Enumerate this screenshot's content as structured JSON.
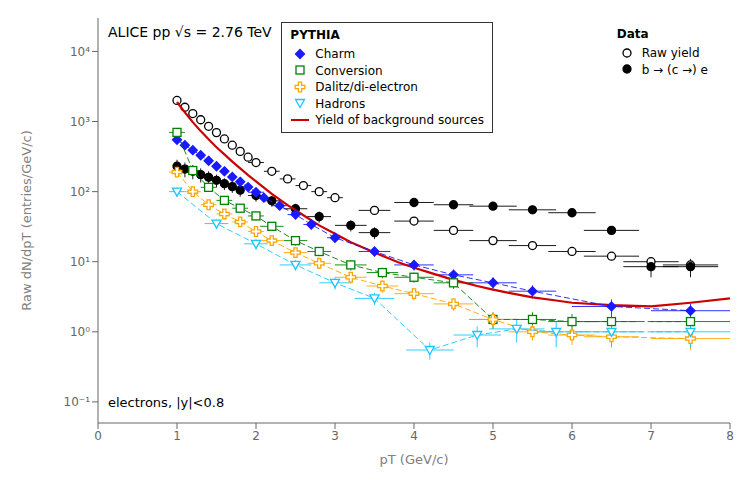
{
  "chart_data": {
    "type": "scatter",
    "xlabel": "pT (GeV/c)",
    "ylabel": "Raw dN/dpT (entries/GeV/c)",
    "annotations": [
      "ALICE pp √s = 2.76 TeV",
      "electrons, |y|<0.8"
    ],
    "log": "y",
    "grid": false,
    "legend": "upper right",
    "xlim": [
      0,
      8
    ],
    "xticks": [
      0,
      1,
      2,
      3,
      4,
      5,
      6,
      7,
      8
    ],
    "ylim": [
      0.05,
      30000
    ],
    "yticks": [
      {
        "value": 0.1,
        "label": "10⁻¹"
      },
      {
        "value": 1,
        "label": "10⁰"
      },
      {
        "value": 10,
        "label": "10¹"
      },
      {
        "value": 100,
        "label": "10²"
      },
      {
        "value": 1000,
        "label": "10³"
      },
      {
        "value": 10000,
        "label": "10⁴"
      }
    ],
    "legend_groups": [
      {
        "title": "PYTHIA",
        "entries": [
          "Charm",
          "Conversion",
          "Dalitz/di-electron",
          "Hadrons",
          "Yield of background sources"
        ]
      },
      {
        "title": "Data",
        "entries": [
          "Raw yield",
          "b → (c →) e"
        ]
      }
    ],
    "series": [
      {
        "name": "Raw yield",
        "type": "scatter",
        "color": "#000000",
        "marker": "open-circle",
        "x": [
          1.0,
          1.1,
          1.2,
          1.3,
          1.4,
          1.5,
          1.6,
          1.7,
          1.8,
          1.9,
          2.0,
          2.2,
          2.4,
          2.6,
          2.8,
          3.0,
          3.5,
          4.0,
          4.5,
          5.0,
          5.5,
          6.0,
          6.5,
          7.0,
          7.5
        ],
        "values": [
          2000,
          1600,
          1300,
          1060,
          855,
          695,
          565,
          460,
          375,
          310,
          260,
          195,
          152,
          122,
          100,
          82,
          54,
          38,
          28,
          20,
          17,
          14,
          12,
          10,
          9
        ],
        "xerr": [
          0.05,
          0.05,
          0.05,
          0.05,
          0.05,
          0.05,
          0.05,
          0.05,
          0.05,
          0.05,
          0.1,
          0.1,
          0.1,
          0.1,
          0.1,
          0.1,
          0.2,
          0.25,
          0.25,
          0.3,
          0.3,
          0.3,
          0.35,
          0.35,
          0.35
        ],
        "yerr": [
          90,
          72,
          58,
          47,
          38,
          31,
          25,
          20,
          17,
          14,
          11,
          8,
          7,
          5,
          4,
          3,
          2.5,
          2,
          1.6,
          1.3,
          1.1,
          0.9,
          0.8,
          0.7,
          0.6
        ]
      },
      {
        "name": "b → (c →) e",
        "type": "scatter",
        "color": "#000000",
        "marker": "circle",
        "x": [
          1.0,
          1.1,
          1.2,
          1.3,
          1.4,
          1.5,
          1.6,
          1.7,
          1.8,
          2.0,
          2.2,
          2.5,
          2.8,
          3.2,
          3.5,
          4.0,
          4.5,
          5.0,
          5.5,
          6.0,
          6.5,
          7.0,
          7.5
        ],
        "values": [
          230,
          210,
          195,
          175,
          160,
          145,
          130,
          118,
          105,
          88,
          74,
          57,
          44,
          33,
          26,
          70,
          65,
          62,
          55,
          50,
          28,
          8.5,
          8.5
        ],
        "xerr": [
          0.05,
          0.05,
          0.05,
          0.05,
          0.05,
          0.05,
          0.05,
          0.05,
          0.05,
          0.1,
          0.1,
          0.15,
          0.15,
          0.2,
          0.2,
          0.25,
          0.25,
          0.3,
          0.3,
          0.3,
          0.35,
          0.35,
          0.35
        ],
        "yerr": [
          55,
          50,
          45,
          40,
          35,
          30,
          25,
          22,
          20,
          16,
          13,
          10,
          8,
          6,
          5,
          4,
          4,
          5,
          5,
          5,
          4,
          2.5,
          2.5
        ]
      },
      {
        "name": "Yield of background sources",
        "type": "line",
        "color": "#CC0000",
        "line_style": "solid",
        "x": [
          1.0,
          1.05,
          1.1,
          1.15,
          1.2,
          1.3,
          1.4,
          1.5,
          1.6,
          1.7,
          1.8,
          1.9,
          2.0,
          2.1,
          2.2,
          2.4,
          2.6,
          2.8,
          3.0,
          3.2,
          3.5,
          3.8,
          4.0,
          4.2,
          4.5,
          4.8,
          5.0,
          5.2,
          5.5,
          5.8,
          6.0,
          6.5,
          7.0,
          7.5,
          8.0
        ],
        "values": [
          1900,
          1600,
          1350,
          1150,
          980,
          730,
          560,
          430,
          340,
          268,
          215,
          172,
          140,
          114,
          93,
          64,
          46,
          33,
          25,
          19,
          13.5,
          9.8,
          8.2,
          7.0,
          5.5,
          4.5,
          4.0,
          3.6,
          3.1,
          2.8,
          2.6,
          2.4,
          2.3,
          2.6,
          3.0
        ]
      },
      {
        "name": "Charm",
        "type": "scatter",
        "color": "#1a1aff",
        "marker": "diamond",
        "line_style": "dashed",
        "x": [
          1.0,
          1.1,
          1.2,
          1.3,
          1.4,
          1.5,
          1.6,
          1.7,
          1.8,
          1.9,
          2.0,
          2.1,
          2.3,
          2.5,
          2.7,
          3.0,
          3.5,
          4.0,
          4.5,
          5.0,
          5.5,
          6.5,
          7.5
        ],
        "values": [
          550,
          460,
          390,
          330,
          275,
          230,
          195,
          162,
          138,
          116,
          98,
          82,
          63,
          47,
          34,
          22,
          14,
          9.0,
          6.5,
          5.0,
          3.8,
          2.3,
          2.0
        ],
        "xerr": [
          0.05,
          0.05,
          0.05,
          0.05,
          0.05,
          0.05,
          0.05,
          0.05,
          0.05,
          0.05,
          0.1,
          0.1,
          0.1,
          0.1,
          0.1,
          0.1,
          0.2,
          0.25,
          0.25,
          0.3,
          0.3,
          0.5,
          0.5
        ],
        "yerr": [
          60,
          50,
          45,
          38,
          32,
          27,
          22,
          18,
          15,
          13,
          11,
          9,
          7,
          6,
          5,
          3,
          2,
          1.5,
          1.2,
          1.0,
          0.8,
          0.6,
          0.5
        ]
      },
      {
        "name": "Conversion",
        "type": "scatter",
        "color": "#008000",
        "marker": "open-square",
        "line_style": "dashed",
        "x": [
          1.0,
          1.2,
          1.4,
          1.6,
          1.8,
          2.0,
          2.2,
          2.5,
          2.8,
          3.2,
          3.6,
          4.0,
          4.5,
          5.0,
          5.5,
          6.0,
          6.5,
          7.5
        ],
        "values": [
          700,
          200,
          115,
          75,
          58,
          45,
          32,
          20,
          14,
          9,
          7,
          6,
          5,
          1.5,
          1.5,
          1.4,
          1.4,
          1.4
        ],
        "xerr": [
          0.1,
          0.1,
          0.1,
          0.1,
          0.1,
          0.1,
          0.15,
          0.15,
          0.15,
          0.2,
          0.2,
          0.25,
          0.25,
          0.3,
          0.3,
          0.3,
          0.35,
          0.5
        ],
        "yerr": [
          90,
          25,
          14,
          10,
          8,
          6,
          4,
          3,
          2,
          1.5,
          1.2,
          1.0,
          0.9,
          0.4,
          0.4,
          0.4,
          0.4,
          0.4
        ]
      },
      {
        "name": "Dalitz/di-electron",
        "type": "scatter",
        "color": "#FFA500",
        "marker": "open-plus",
        "line_style": "dashed",
        "x": [
          1.0,
          1.2,
          1.4,
          1.6,
          1.8,
          2.0,
          2.2,
          2.5,
          2.8,
          3.2,
          3.6,
          4.0,
          4.5,
          5.0,
          5.5,
          6.0,
          6.5,
          7.5
        ],
        "values": [
          190,
          100,
          65,
          48,
          37,
          27,
          20,
          13.5,
          9.5,
          6,
          4.5,
          3.5,
          2.5,
          1.5,
          1.0,
          0.9,
          0.85,
          0.8
        ],
        "xerr": [
          0.1,
          0.1,
          0.1,
          0.1,
          0.1,
          0.1,
          0.15,
          0.15,
          0.15,
          0.2,
          0.2,
          0.25,
          0.25,
          0.3,
          0.3,
          0.3,
          0.35,
          0.5
        ],
        "yerr": [
          25,
          13,
          9,
          7,
          5,
          4,
          3,
          2.2,
          1.6,
          1.1,
          0.9,
          0.7,
          0.5,
          0.3,
          0.25,
          0.25,
          0.25,
          0.25
        ]
      },
      {
        "name": "Hadrons",
        "type": "scatter",
        "color": "#1ac6ff",
        "marker": "open-triangle-down",
        "line_style": "dashed",
        "x": [
          1.0,
          1.5,
          2.0,
          2.5,
          3.0,
          3.5,
          4.2,
          4.8,
          5.3,
          5.8,
          6.5,
          7.5
        ],
        "values": [
          100,
          35,
          18,
          9,
          5,
          3,
          0.55,
          0.9,
          1.1,
          1.0,
          1.0,
          1.0
        ],
        "xerr": [
          0.1,
          0.15,
          0.15,
          0.2,
          0.2,
          0.25,
          0.3,
          0.3,
          0.35,
          0.35,
          0.4,
          0.5
        ],
        "yerr": [
          15,
          5,
          3,
          1.5,
          1,
          0.6,
          0.15,
          0.3,
          0.4,
          0.4,
          0.4,
          0.4
        ]
      }
    ]
  }
}
